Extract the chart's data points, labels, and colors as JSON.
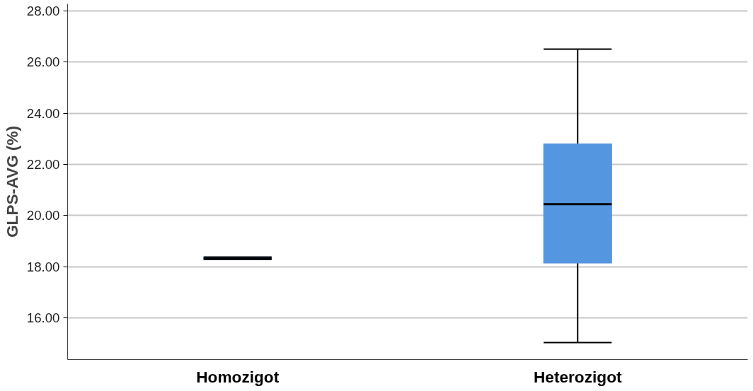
{
  "chart_data": {
    "type": "box",
    "ylabel": "GLPS-AVG (%)",
    "categories": [
      "Homozigot",
      "Heterozigot"
    ],
    "boxes": [
      {
        "low": 18.28,
        "q1": 18.3,
        "median": 18.33,
        "q3": 18.36,
        "high": 18.38
      },
      {
        "low": 15.03,
        "q1": 18.14,
        "median": 20.44,
        "q3": 22.8,
        "high": 26.5
      }
    ],
    "color": "#5596e0",
    "ylim": [
      14.37,
      28.27
    ],
    "yticks": [
      {
        "value": 16,
        "label": "16.00"
      },
      {
        "value": 18,
        "label": "18.00"
      },
      {
        "value": 20,
        "label": "20.00"
      },
      {
        "value": 22,
        "label": "22.00"
      },
      {
        "value": 24,
        "label": "24.00"
      },
      {
        "value": 26,
        "label": "26.00"
      },
      {
        "value": 28,
        "label": "28.00"
      }
    ],
    "grid": "y"
  }
}
